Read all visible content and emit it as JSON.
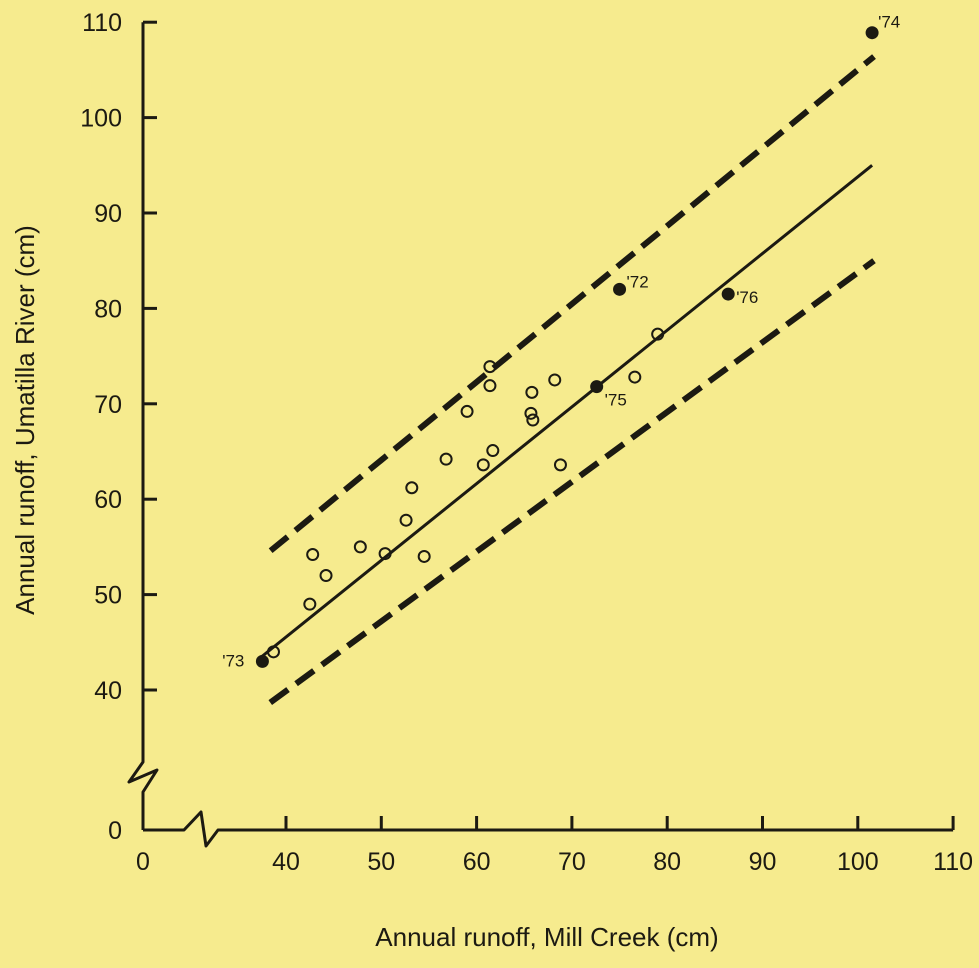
{
  "chart_data": {
    "type": "scatter",
    "title": "",
    "xlabel": "Annual  runoff,  Mill  Creek (cm)",
    "ylabel": "Annual  runoff,  Umatilla  River (cm)",
    "xlim": [
      0,
      110
    ],
    "ylim": [
      0,
      110
    ],
    "axis_breaks": [
      "x between 0 and 40",
      "y between 0 and 40"
    ],
    "x_ticks": [
      "0",
      "40",
      "50",
      "60",
      "70",
      "80",
      "90",
      "100",
      "110"
    ],
    "y_ticks": [
      "0",
      "40",
      "50",
      "60",
      "70",
      "80",
      "90",
      "100",
      "110"
    ],
    "grid": false,
    "legend": "none",
    "background_color": "#f6eb8e",
    "ink_color": "#1c1a12",
    "series": [
      {
        "marker": "open-circle",
        "points": [
          {
            "x": 36.5,
            "y": 44.0
          },
          {
            "x": 42.5,
            "y": 49.0
          },
          {
            "x": 42.8,
            "y": 54.2
          },
          {
            "x": 44.2,
            "y": 52.0
          },
          {
            "x": 47.8,
            "y": 55.0
          },
          {
            "x": 50.4,
            "y": 54.3
          },
          {
            "x": 52.6,
            "y": 57.8
          },
          {
            "x": 53.2,
            "y": 61.2
          },
          {
            "x": 54.5,
            "y": 54.0
          },
          {
            "x": 56.8,
            "y": 64.2
          },
          {
            "x": 59.0,
            "y": 69.2
          },
          {
            "x": 60.7,
            "y": 63.6
          },
          {
            "x": 61.4,
            "y": 73.9
          },
          {
            "x": 61.4,
            "y": 71.9
          },
          {
            "x": 61.7,
            "y": 65.1
          },
          {
            "x": 65.8,
            "y": 71.2
          },
          {
            "x": 65.7,
            "y": 69.0
          },
          {
            "x": 65.9,
            "y": 68.3
          },
          {
            "x": 68.2,
            "y": 72.5
          },
          {
            "x": 68.8,
            "y": 63.6
          },
          {
            "x": 76.6,
            "y": 72.8
          },
          {
            "x": 79.0,
            "y": 77.3
          }
        ]
      },
      {
        "marker": "filled-circle",
        "points": [
          {
            "x": 33.4,
            "y": 43.0,
            "label": "'73"
          },
          {
            "x": 72.6,
            "y": 71.8,
            "label": "'75"
          },
          {
            "x": 75.0,
            "y": 82.0,
            "label": "'72"
          },
          {
            "x": 86.4,
            "y": 81.5,
            "label": "'76"
          },
          {
            "x": 101.5,
            "y": 108.9,
            "label": "'74"
          }
        ]
      }
    ],
    "lines": [
      {
        "style": "solid",
        "points": [
          [
            33.2,
            43.5
          ],
          [
            101.5,
            95.0
          ]
        ]
      },
      {
        "style": "dashed",
        "points": [
          [
            35.7,
            54.6
          ],
          [
            101.7,
            106.4
          ]
        ]
      },
      {
        "style": "dashed",
        "points": [
          [
            35.6,
            36.4
          ],
          [
            101.7,
            85.0
          ]
        ]
      }
    ]
  }
}
